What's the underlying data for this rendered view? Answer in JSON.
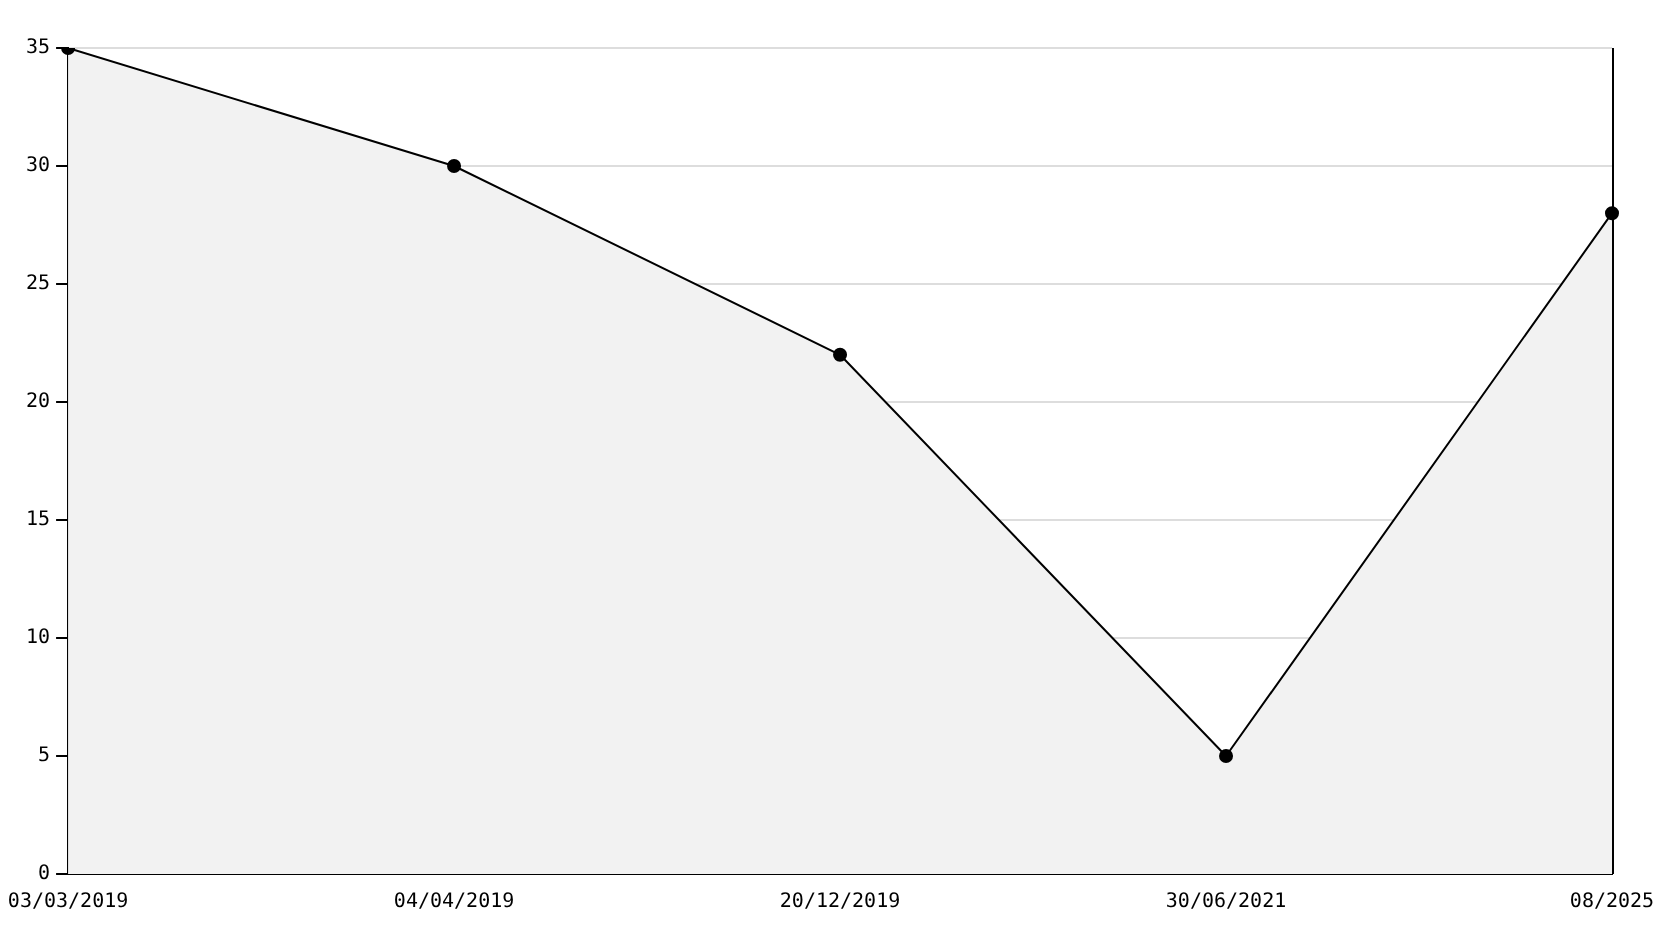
{
  "chart_data": {
    "type": "area",
    "categories": [
      "03/03/2019",
      "04/04/2019",
      "20/12/2019",
      "30/06/2021",
      "08/2025"
    ],
    "series": [
      {
        "color": "#000000",
        "values": [
          35,
          30,
          22,
          5,
          28
        ]
      }
    ],
    "ylim": [
      0,
      35
    ],
    "yticks": [
      0,
      5,
      10,
      15,
      20,
      25,
      30,
      35
    ],
    "grid": "y",
    "legend": false,
    "marker": "circle",
    "line_style": "solid"
  }
}
